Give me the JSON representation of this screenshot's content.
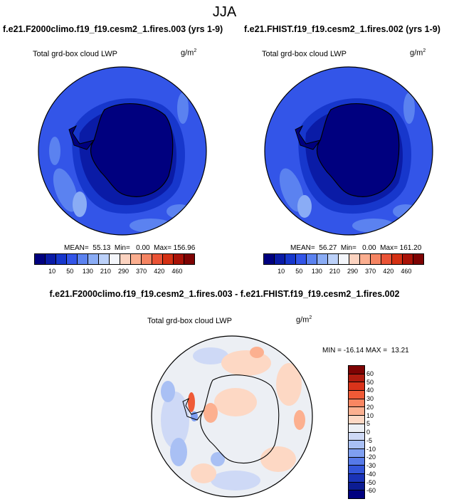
{
  "main_title": "JJA",
  "panels": [
    {
      "title": "f.e21.F2000climo.f19_f19.cesm2_1.fires.003 (yrs 1-9)",
      "field_label": "Total grd-box cloud LWP",
      "units": "g/m",
      "units_sup": "2",
      "stats": "MEAN=  55.13  Min=   0.00  Max= 156.96"
    },
    {
      "title": "f.e21.FHIST.f19_f19.cesm2_1.fires.002 (yrs 1-9)",
      "field_label": "Total grd-box cloud LWP",
      "units": "g/m",
      "units_sup": "2",
      "stats": "MEAN=  56.27  Min=   0.00  Max= 161.20"
    }
  ],
  "diff_panel": {
    "title": "f.e21.F2000climo.f19_f19.cesm2_1.fires.003 - f.e21.FHIST.f19_f19.cesm2_1.fires.002",
    "field_label": "Total grd-box cloud LWP",
    "units": "g/m",
    "units_sup": "2",
    "stats": "MIN = -16.14 MAX =  13.21"
  },
  "abs_colorbar": {
    "colors": [
      "#00007f",
      "#0a1ba6",
      "#1737cc",
      "#3355e8",
      "#5b82f0",
      "#8aacf5",
      "#bcd1f9",
      "#f4f6fb",
      "#fcd3c0",
      "#fbae8f",
      "#f58462",
      "#ea5336",
      "#d43013",
      "#a91207",
      "#7e0303"
    ],
    "labels": [
      "10",
      "50",
      "130",
      "210",
      "290",
      "370",
      "420",
      "460"
    ]
  },
  "diff_colorbar": {
    "colors": [
      "#7e0303",
      "#b01c0f",
      "#d9331a",
      "#ef5a36",
      "#f98662",
      "#fcb090",
      "#fdd8c4",
      "#eceff4",
      "#ced9f6",
      "#a9c0f4",
      "#7f9ff0",
      "#5679e8",
      "#3355d9",
      "#1a33b7",
      "#0c1c93",
      "#00007f"
    ],
    "labels": [
      "60",
      "50",
      "40",
      "30",
      "20",
      "10",
      "5",
      "0",
      "-5",
      "-10",
      "-20",
      "-30",
      "-40",
      "-50",
      "-60"
    ]
  }
}
